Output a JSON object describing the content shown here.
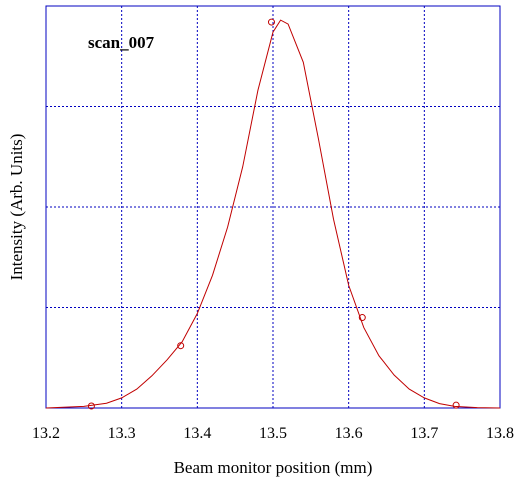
{
  "chart_data": {
    "type": "line",
    "title": "scan_007",
    "xlabel": "Beam monitor position (mm)",
    "ylabel": "Intensity (Arb. Units)",
    "xlim": [
      13.2,
      13.8
    ],
    "ylim": [
      0,
      1.0
    ],
    "x_ticks": [
      "13.2",
      "13.3",
      "13.4",
      "13.5",
      "13.6",
      "13.7",
      "13.8"
    ],
    "grid": true,
    "series": [
      {
        "style": "fit-curve",
        "color": "#c00000",
        "x": [
          13.2,
          13.25,
          13.28,
          13.3,
          13.32,
          13.34,
          13.36,
          13.38,
          13.4,
          13.42,
          13.44,
          13.46,
          13.48,
          13.5,
          13.51,
          13.52,
          13.54,
          13.56,
          13.58,
          13.6,
          13.62,
          13.64,
          13.66,
          13.68,
          13.7,
          13.72,
          13.74,
          13.77,
          13.8
        ],
        "y": [
          0.0,
          0.004,
          0.012,
          0.025,
          0.047,
          0.08,
          0.12,
          0.165,
          0.235,
          0.33,
          0.45,
          0.6,
          0.79,
          0.935,
          0.965,
          0.955,
          0.86,
          0.67,
          0.47,
          0.305,
          0.2,
          0.13,
          0.082,
          0.047,
          0.025,
          0.011,
          0.004,
          0.001,
          0.0
        ]
      },
      {
        "style": "markers",
        "color": "#c00000",
        "x": [
          13.26,
          13.378,
          13.498,
          13.618,
          13.742
        ],
        "y": [
          0.005,
          0.155,
          0.96,
          0.225,
          0.007
        ]
      }
    ]
  }
}
